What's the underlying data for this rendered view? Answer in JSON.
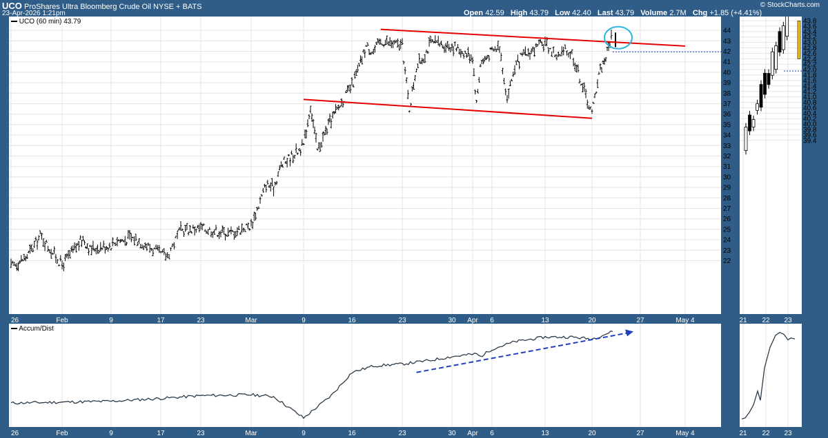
{
  "header": {
    "symbol": "UCO",
    "description": "ProShares Ultra Bloomberg Crude Oil",
    "exchange": "NYSE + BATS",
    "datetime": "23-Apr-2026 1:21pm",
    "watermark": "© StockCharts.com",
    "quote": {
      "open_label": "Open",
      "open": "42.59",
      "high_label": "High",
      "high": "43.79",
      "low_label": "Low",
      "low": "42.40",
      "last_label": "Last",
      "last": "43.79",
      "volume_label": "Volume",
      "volume": "2.7M",
      "chg_label": "Chg",
      "chg": "+1.85 (+4.41%)"
    }
  },
  "colors": {
    "frame": "#2f5d87",
    "price": "#000000",
    "trendline": "#e60000",
    "circle": "#2ab4e0",
    "dotted": "#1f3fbf",
    "arrow": "#1f3fbf",
    "accum": "#2b3a48",
    "last_bar": "#f2c418"
  },
  "chart_data": [
    {
      "type": "ohlc",
      "legend": "UCO (60 min) 43.79",
      "y_ticks": [
        22,
        23,
        24,
        25,
        26,
        27,
        28,
        29,
        30,
        31,
        32,
        33,
        34,
        35,
        36,
        37,
        38,
        39,
        40,
        41,
        42,
        43,
        44
      ],
      "x_tick_labels": [
        "26",
        "Feb",
        "9",
        "17",
        "23",
        "Mar",
        "9",
        "16",
        "23",
        "30",
        "Apr",
        "6",
        "13",
        "20",
        "27",
        "May 4"
      ],
      "price_path": [
        [
          "2026-01-26",
          21.4
        ],
        [
          "2026-01-28",
          22.3
        ],
        [
          "2026-01-29",
          23.2
        ],
        [
          "2026-01-30",
          24.4
        ],
        [
          "2026-02-02",
          21.6
        ],
        [
          "2026-02-04",
          23.3
        ],
        [
          "2026-02-05",
          24.1
        ],
        [
          "2026-02-06",
          23.1
        ],
        [
          "2026-02-09",
          23.5
        ],
        [
          "2026-02-10",
          24.0
        ],
        [
          "2026-02-11",
          23.9
        ],
        [
          "2026-02-12",
          24.2
        ],
        [
          "2026-02-13",
          24.1
        ],
        [
          "2026-02-16",
          23.0
        ],
        [
          "2026-02-17",
          22.6
        ],
        [
          "2026-02-18",
          22.5
        ],
        [
          "2026-02-19",
          23.7
        ],
        [
          "2026-02-20",
          24.9
        ],
        [
          "2026-02-23",
          25.1
        ],
        [
          "2026-02-24",
          25.0
        ],
        [
          "2026-02-26",
          24.7
        ],
        [
          "2026-02-27",
          24.6
        ],
        [
          "2026-03-02",
          25.4
        ],
        [
          "2026-03-03",
          27.3
        ],
        [
          "2026-03-04",
          29.3
        ],
        [
          "2026-03-05",
          29.0
        ],
        [
          "2026-03-06",
          31.1
        ],
        [
          "2026-03-09",
          33.0
        ],
        [
          "2026-03-10",
          36.8
        ],
        [
          "2026-03-11",
          32.5
        ],
        [
          "2026-03-12",
          34.0
        ],
        [
          "2026-03-13",
          35.5
        ],
        [
          "2026-03-16",
          38.7
        ],
        [
          "2026-03-17",
          40.5
        ],
        [
          "2026-03-18",
          42.5
        ],
        [
          "2026-03-19",
          42.0
        ],
        [
          "2026-03-20",
          43.0
        ],
        [
          "2026-03-23",
          42.5
        ],
        [
          "2026-03-24",
          36.5
        ],
        [
          "2026-03-25",
          40.5
        ],
        [
          "2026-03-26",
          41.5
        ],
        [
          "2026-03-27",
          42.8
        ],
        [
          "2026-03-30",
          42.5
        ],
        [
          "2026-03-31",
          42.0
        ],
        [
          "2026-04-01",
          41.5
        ],
        [
          "2026-04-02",
          37.0
        ],
        [
          "2026-04-03",
          40.8
        ],
        [
          "2026-04-06",
          42.0
        ],
        [
          "2026-04-07",
          42.5
        ],
        [
          "2026-04-08",
          37.5
        ],
        [
          "2026-04-09",
          40.5
        ],
        [
          "2026-04-10",
          41.5
        ],
        [
          "2026-04-13",
          42.8
        ],
        [
          "2026-04-14",
          42.0
        ],
        [
          "2026-04-15",
          41.5
        ],
        [
          "2026-04-16",
          42.0
        ],
        [
          "2026-04-17",
          41.8
        ],
        [
          "2026-04-20",
          36.0
        ],
        [
          "2026-04-21",
          40.0
        ],
        [
          "2026-04-22",
          41.5
        ],
        [
          "2026-04-23",
          43.79
        ]
      ],
      "trendlines": [
        {
          "from": [
            "2026-03-20",
            44.1
          ],
          "to": [
            "2026-05-04",
            42.5
          ]
        },
        {
          "from": [
            "2026-03-09",
            37.4
          ],
          "to": [
            "2026-04-20",
            35.6
          ]
        }
      ],
      "dotted_level": {
        "from_date": "2026-04-23",
        "value": 41.95
      },
      "highlight_circle": {
        "date": "2026-04-23",
        "value": 43.3
      }
    },
    {
      "type": "ohlc",
      "y_ticks": [
        39.4,
        39.6,
        39.8,
        40.0,
        40.2,
        40.4,
        40.6,
        40.8,
        41.0,
        41.2,
        41.4,
        41.6,
        41.8,
        42.0,
        42.2,
        42.4,
        42.6,
        42.8,
        43.0,
        43.2,
        43.4,
        43.6,
        43.8
      ],
      "x_tick_labels": [
        "21",
        "22",
        "23"
      ],
      "price_path": [
        [
          "2026-04-21",
          39.5
        ],
        [
          "2026-04-22",
          41.8
        ],
        [
          "2026-04-23",
          43.79
        ]
      ],
      "dotted_level": 41.95
    },
    {
      "type": "line",
      "legend": "Accum/Dist",
      "x_tick_labels": [
        "26",
        "Feb",
        "9",
        "17",
        "23",
        "Mar",
        "9",
        "16",
        "23",
        "30",
        "Apr",
        "6",
        "13",
        "20",
        "27",
        "May 4"
      ],
      "path": [
        [
          "2026-01-26",
          0.22
        ],
        [
          "2026-02-02",
          0.23
        ],
        [
          "2026-02-09",
          0.24
        ],
        [
          "2026-02-17",
          0.27
        ],
        [
          "2026-02-23",
          0.3
        ],
        [
          "2026-03-02",
          0.31
        ],
        [
          "2026-03-05",
          0.29
        ],
        [
          "2026-03-09",
          0.06
        ],
        [
          "2026-03-11",
          0.18
        ],
        [
          "2026-03-13",
          0.3
        ],
        [
          "2026-03-16",
          0.55
        ],
        [
          "2026-03-19",
          0.62
        ],
        [
          "2026-03-23",
          0.64
        ],
        [
          "2026-03-27",
          0.68
        ],
        [
          "2026-03-30",
          0.72
        ],
        [
          "2026-04-02",
          0.75
        ],
        [
          "2026-04-03",
          0.72
        ],
        [
          "2026-04-06",
          0.8
        ],
        [
          "2026-04-09",
          0.88
        ],
        [
          "2026-04-13",
          0.93
        ],
        [
          "2026-04-17",
          0.93
        ],
        [
          "2026-04-20",
          0.91
        ],
        [
          "2026-04-23",
          0.99
        ]
      ],
      "trend_arrow": {
        "from": [
          "2026-03-25",
          0.55
        ],
        "to": [
          "2026-04-26",
          0.99
        ]
      }
    },
    {
      "type": "line",
      "x_tick_labels": [
        "21",
        "22",
        "23"
      ],
      "path": [
        [
          "2026-04-21",
          0.05
        ],
        [
          "2026-04-22",
          0.55
        ],
        [
          "2026-04-23",
          0.97
        ]
      ]
    }
  ]
}
